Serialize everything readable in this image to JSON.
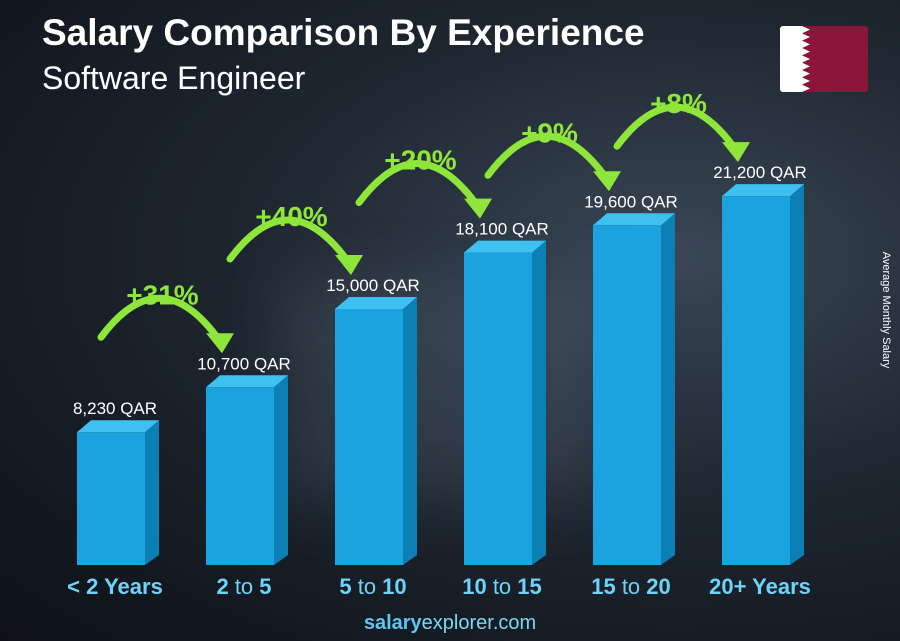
{
  "title": "Salary Comparison By Experience",
  "subtitle": "Software Engineer",
  "ylabel": "Average Monthly Salary",
  "footer": {
    "brand": "salary",
    "rest": "explorer",
    "tld": ".com"
  },
  "chart_data": {
    "type": "bar",
    "title": "Salary Comparison By Experience",
    "subtitle": "Software Engineer",
    "ylabel": "Average Monthly Salary",
    "unit": "QAR",
    "categories": [
      [
        "< 2",
        "Years",
        ""
      ],
      [
        "2",
        "to",
        "5"
      ],
      [
        "5",
        "to",
        "10"
      ],
      [
        "10",
        "to",
        "15"
      ],
      [
        "15",
        "to",
        "20"
      ],
      [
        "20+",
        "Years",
        ""
      ]
    ],
    "values": [
      8230,
      10700,
      15000,
      18100,
      19600,
      21200
    ],
    "value_labels": [
      "8,230 QAR",
      "10,700 QAR",
      "15,000 QAR",
      "18,100 QAR",
      "19,600 QAR",
      "21,200 QAR"
    ],
    "changes": [
      "+31%",
      "+40%",
      "+20%",
      "+9%",
      "+8%"
    ],
    "colors": {
      "bar_front": "#1aa3de",
      "bar_side": "#0c7fb5",
      "bar_top": "#3ec0f0",
      "change": "#8ee63a",
      "category": "#6fd3f7"
    }
  }
}
